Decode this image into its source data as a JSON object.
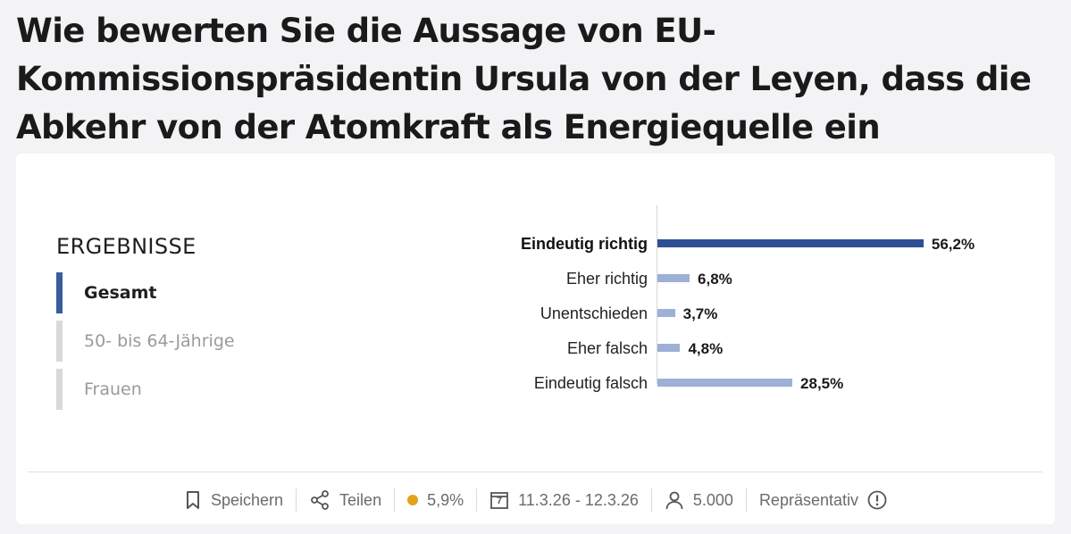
{
  "question": "Wie bewerten Sie die Aussage von EU-Kommissionspräsidentin Ursula von der Leyen, dass die Abkehr von der Atomkraft als Energiequelle ein strategischer Fehler sei?",
  "results": {
    "heading": "ERGEBNISSE",
    "filters": [
      {
        "label": "Gesamt",
        "active": true
      },
      {
        "label": "50- bis 64-Jährige",
        "active": false
      },
      {
        "label": "Frauen",
        "active": false
      }
    ]
  },
  "chart_data": {
    "type": "bar",
    "orientation": "horizontal",
    "categories": [
      "Eindeutig richtig",
      "Eher richtig",
      "Unentschieden",
      "Eher falsch",
      "Eindeutig falsch"
    ],
    "values": [
      56.2,
      6.8,
      3.7,
      4.8,
      28.5
    ],
    "value_labels": [
      "56,2%",
      "6,8%",
      "3,7%",
      "4,8%",
      "28,5%"
    ],
    "highlight_index": 0,
    "colors": {
      "highlight": "#2f4f94",
      "default": "#9db0d6"
    },
    "xlim": [
      0,
      100
    ]
  },
  "footer": {
    "save_label": "Speichern",
    "share_label": "Teilen",
    "margin_of_error": "5,9%",
    "margin_color": "#e3a21a",
    "date_range": "11.3.26 - 12.3.26",
    "calendar_day": "7",
    "respondents": "5.000",
    "representative_label": "Repräsentativ"
  }
}
